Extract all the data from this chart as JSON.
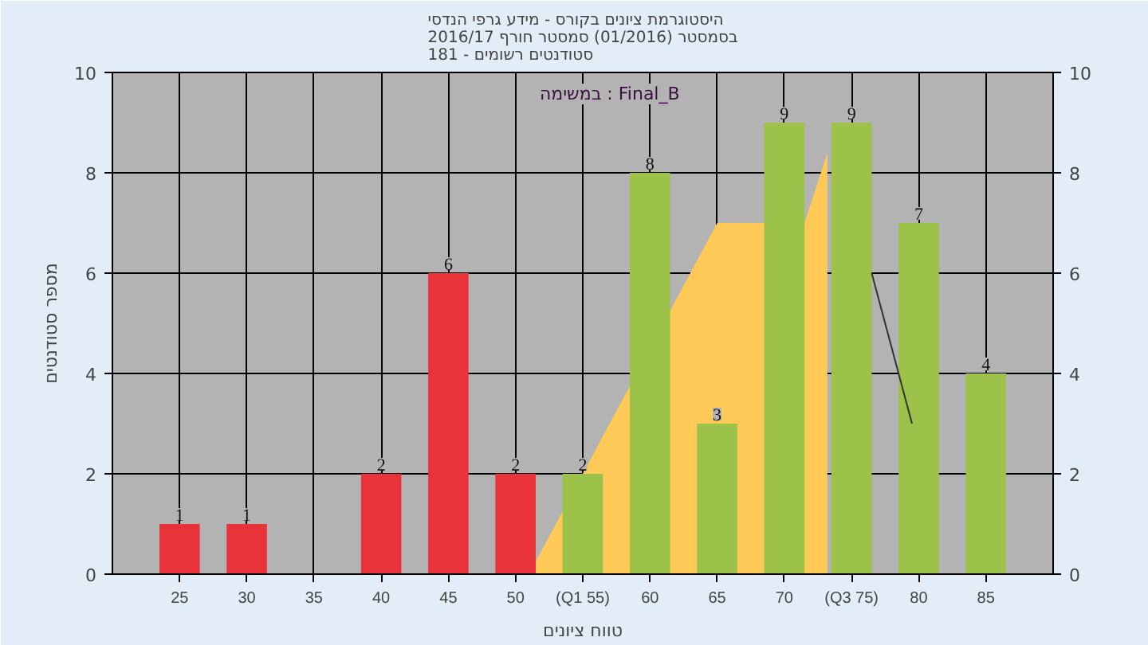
{
  "chart_data": {
    "type": "bar",
    "title": "היסטוגרמת ציונים בקורס - מידע גרפי הנדסי\nבסמסטר (01/2016) סמסטר חורף 2016/17\nסטודנטים רשומים - 181",
    "xlabel": "טווח ציונים",
    "ylabel": "מספר סטודנטים",
    "annotations": [
      "במשימה : Final_B"
    ],
    "x": [
      25,
      30,
      35,
      40,
      45,
      50,
      55,
      60,
      65,
      70,
      75,
      80,
      85
    ],
    "series": [
      {
        "type": "area",
        "color": "#ffc957",
        "x": [
          51,
          65,
          71.5,
          73.2
        ],
        "values": [
          0,
          7,
          7,
          8.4
        ]
      },
      {
        "values": [
          1,
          1,
          null,
          2,
          6,
          2,
          2,
          8,
          3,
          9,
          9,
          7,
          4
        ],
        "value_labels": [
          "1",
          "1",
          null,
          "2",
          "6",
          "2",
          "2",
          "8",
          "3",
          "9",
          "9",
          "7",
          "4"
        ],
        "colors": [
          "#e8333a",
          "#e8333a",
          "#e8333a",
          "#e8333a",
          "#e8333a",
          "#e8333a",
          "#9cc24a",
          "#9cc24a",
          "#9cc24a",
          "#9cc24a",
          "#9cc24a",
          "#9cc24a",
          "#9cc24a"
        ]
      },
      {
        "type": "line",
        "color": "#333333",
        "x": [
          76.5,
          79.5
        ],
        "values": [
          6,
          3
        ]
      }
    ],
    "xlim": [
      20,
      90
    ],
    "xticks": [
      25,
      30,
      35,
      40,
      45,
      50,
      {
        "value": 55,
        "label": "(Q1 55)"
      },
      60,
      65,
      70,
      {
        "value": 75,
        "label": "(Q3 75)"
      },
      80,
      85
    ],
    "ylim": [
      0,
      10
    ],
    "yticks": [
      0,
      2,
      4,
      6,
      8,
      10
    ],
    "y2lim": [
      0,
      10
    ],
    "y2ticks": [
      0,
      2,
      4,
      6,
      8,
      10
    ],
    "grid": true
  }
}
